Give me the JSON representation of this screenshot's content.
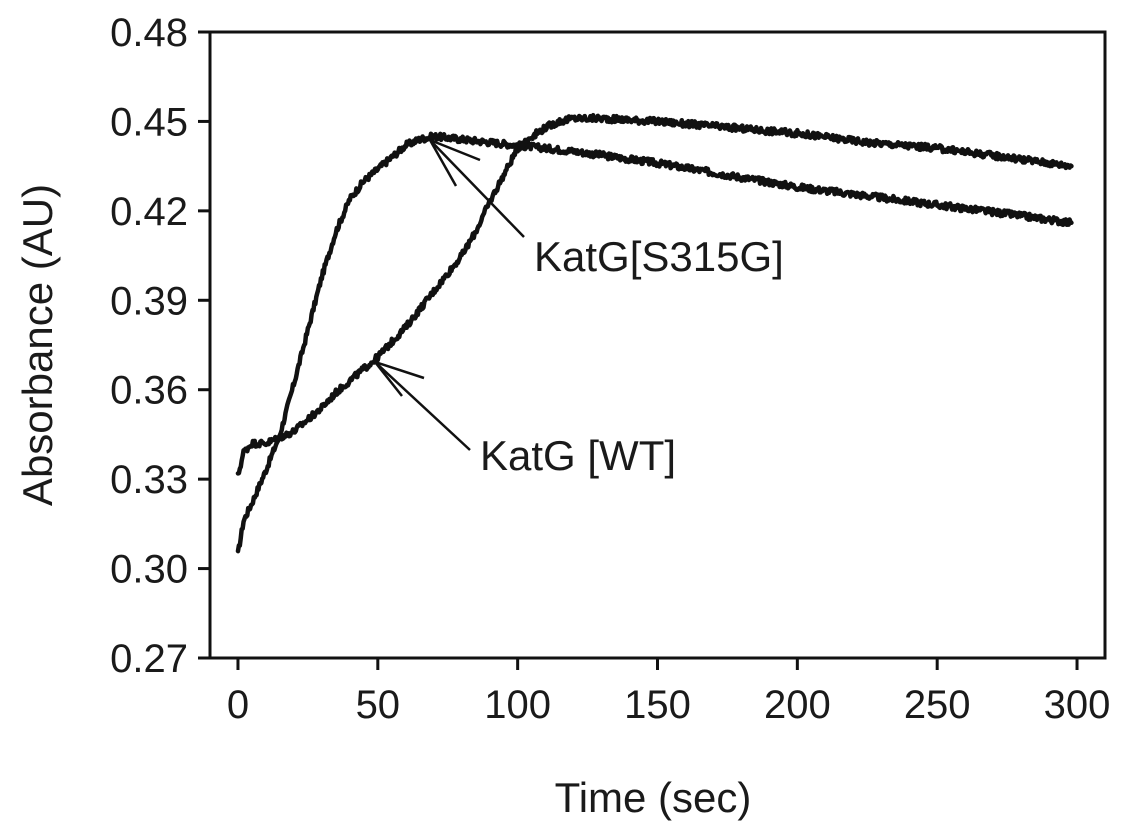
{
  "chart_data": {
    "type": "line",
    "title": "",
    "xlabel": "Time (sec)",
    "ylabel": "Absorbance (AU)",
    "xlim": [
      -10,
      310
    ],
    "ylim": [
      0.27,
      0.48
    ],
    "xticks": [
      0,
      50,
      100,
      150,
      200,
      250,
      300
    ],
    "yticks": [
      0.27,
      0.3,
      0.33,
      0.36,
      0.39,
      0.42,
      0.45,
      0.48
    ],
    "x_tick_labels": [
      "0",
      "50",
      "100",
      "150",
      "200",
      "250",
      "300"
    ],
    "y_tick_labels": [
      "0.27",
      "0.30",
      "0.33",
      "0.36",
      "0.39",
      "0.42",
      "0.45",
      "0.48"
    ],
    "grid": false,
    "legend": "none",
    "line_color": "#111111",
    "series": [
      {
        "name": "KatG[S315G]",
        "points": [
          [
            0,
            0.305
          ],
          [
            2,
            0.316
          ],
          [
            5,
            0.322
          ],
          [
            10,
            0.333
          ],
          [
            15,
            0.345
          ],
          [
            20,
            0.362
          ],
          [
            25,
            0.38
          ],
          [
            30,
            0.398
          ],
          [
            35,
            0.413
          ],
          [
            40,
            0.424
          ],
          [
            45,
            0.43
          ],
          [
            50,
            0.434
          ],
          [
            55,
            0.438
          ],
          [
            60,
            0.442
          ],
          [
            65,
            0.444
          ],
          [
            70,
            0.445
          ],
          [
            80,
            0.444
          ],
          [
            90,
            0.443
          ],
          [
            100,
            0.442
          ],
          [
            120,
            0.44
          ],
          [
            150,
            0.436
          ],
          [
            175,
            0.432
          ],
          [
            200,
            0.428
          ],
          [
            225,
            0.425
          ],
          [
            250,
            0.422
          ],
          [
            275,
            0.419
          ],
          [
            298,
            0.416
          ]
        ]
      },
      {
        "name": "KatG [WT]",
        "points": [
          [
            0,
            0.331
          ],
          [
            2,
            0.339
          ],
          [
            5,
            0.342
          ],
          [
            10,
            0.342
          ],
          [
            15,
            0.344
          ],
          [
            20,
            0.346
          ],
          [
            25,
            0.35
          ],
          [
            30,
            0.354
          ],
          [
            35,
            0.359
          ],
          [
            40,
            0.363
          ],
          [
            45,
            0.367
          ],
          [
            50,
            0.371
          ],
          [
            55,
            0.376
          ],
          [
            60,
            0.381
          ],
          [
            65,
            0.387
          ],
          [
            70,
            0.393
          ],
          [
            75,
            0.399
          ],
          [
            80,
            0.405
          ],
          [
            85,
            0.413
          ],
          [
            90,
            0.423
          ],
          [
            95,
            0.432
          ],
          [
            100,
            0.441
          ],
          [
            105,
            0.445
          ],
          [
            110,
            0.448
          ],
          [
            115,
            0.45
          ],
          [
            120,
            0.451
          ],
          [
            130,
            0.451
          ],
          [
            150,
            0.45
          ],
          [
            175,
            0.448
          ],
          [
            200,
            0.446
          ],
          [
            225,
            0.443
          ],
          [
            250,
            0.441
          ],
          [
            275,
            0.438
          ],
          [
            298,
            0.435
          ]
        ]
      }
    ],
    "annotations": [
      {
        "text": "KatG[S315G]",
        "target": [
          68,
          0.445
        ]
      },
      {
        "text": "KatG [WT]",
        "target": [
          50,
          0.371
        ]
      }
    ]
  }
}
